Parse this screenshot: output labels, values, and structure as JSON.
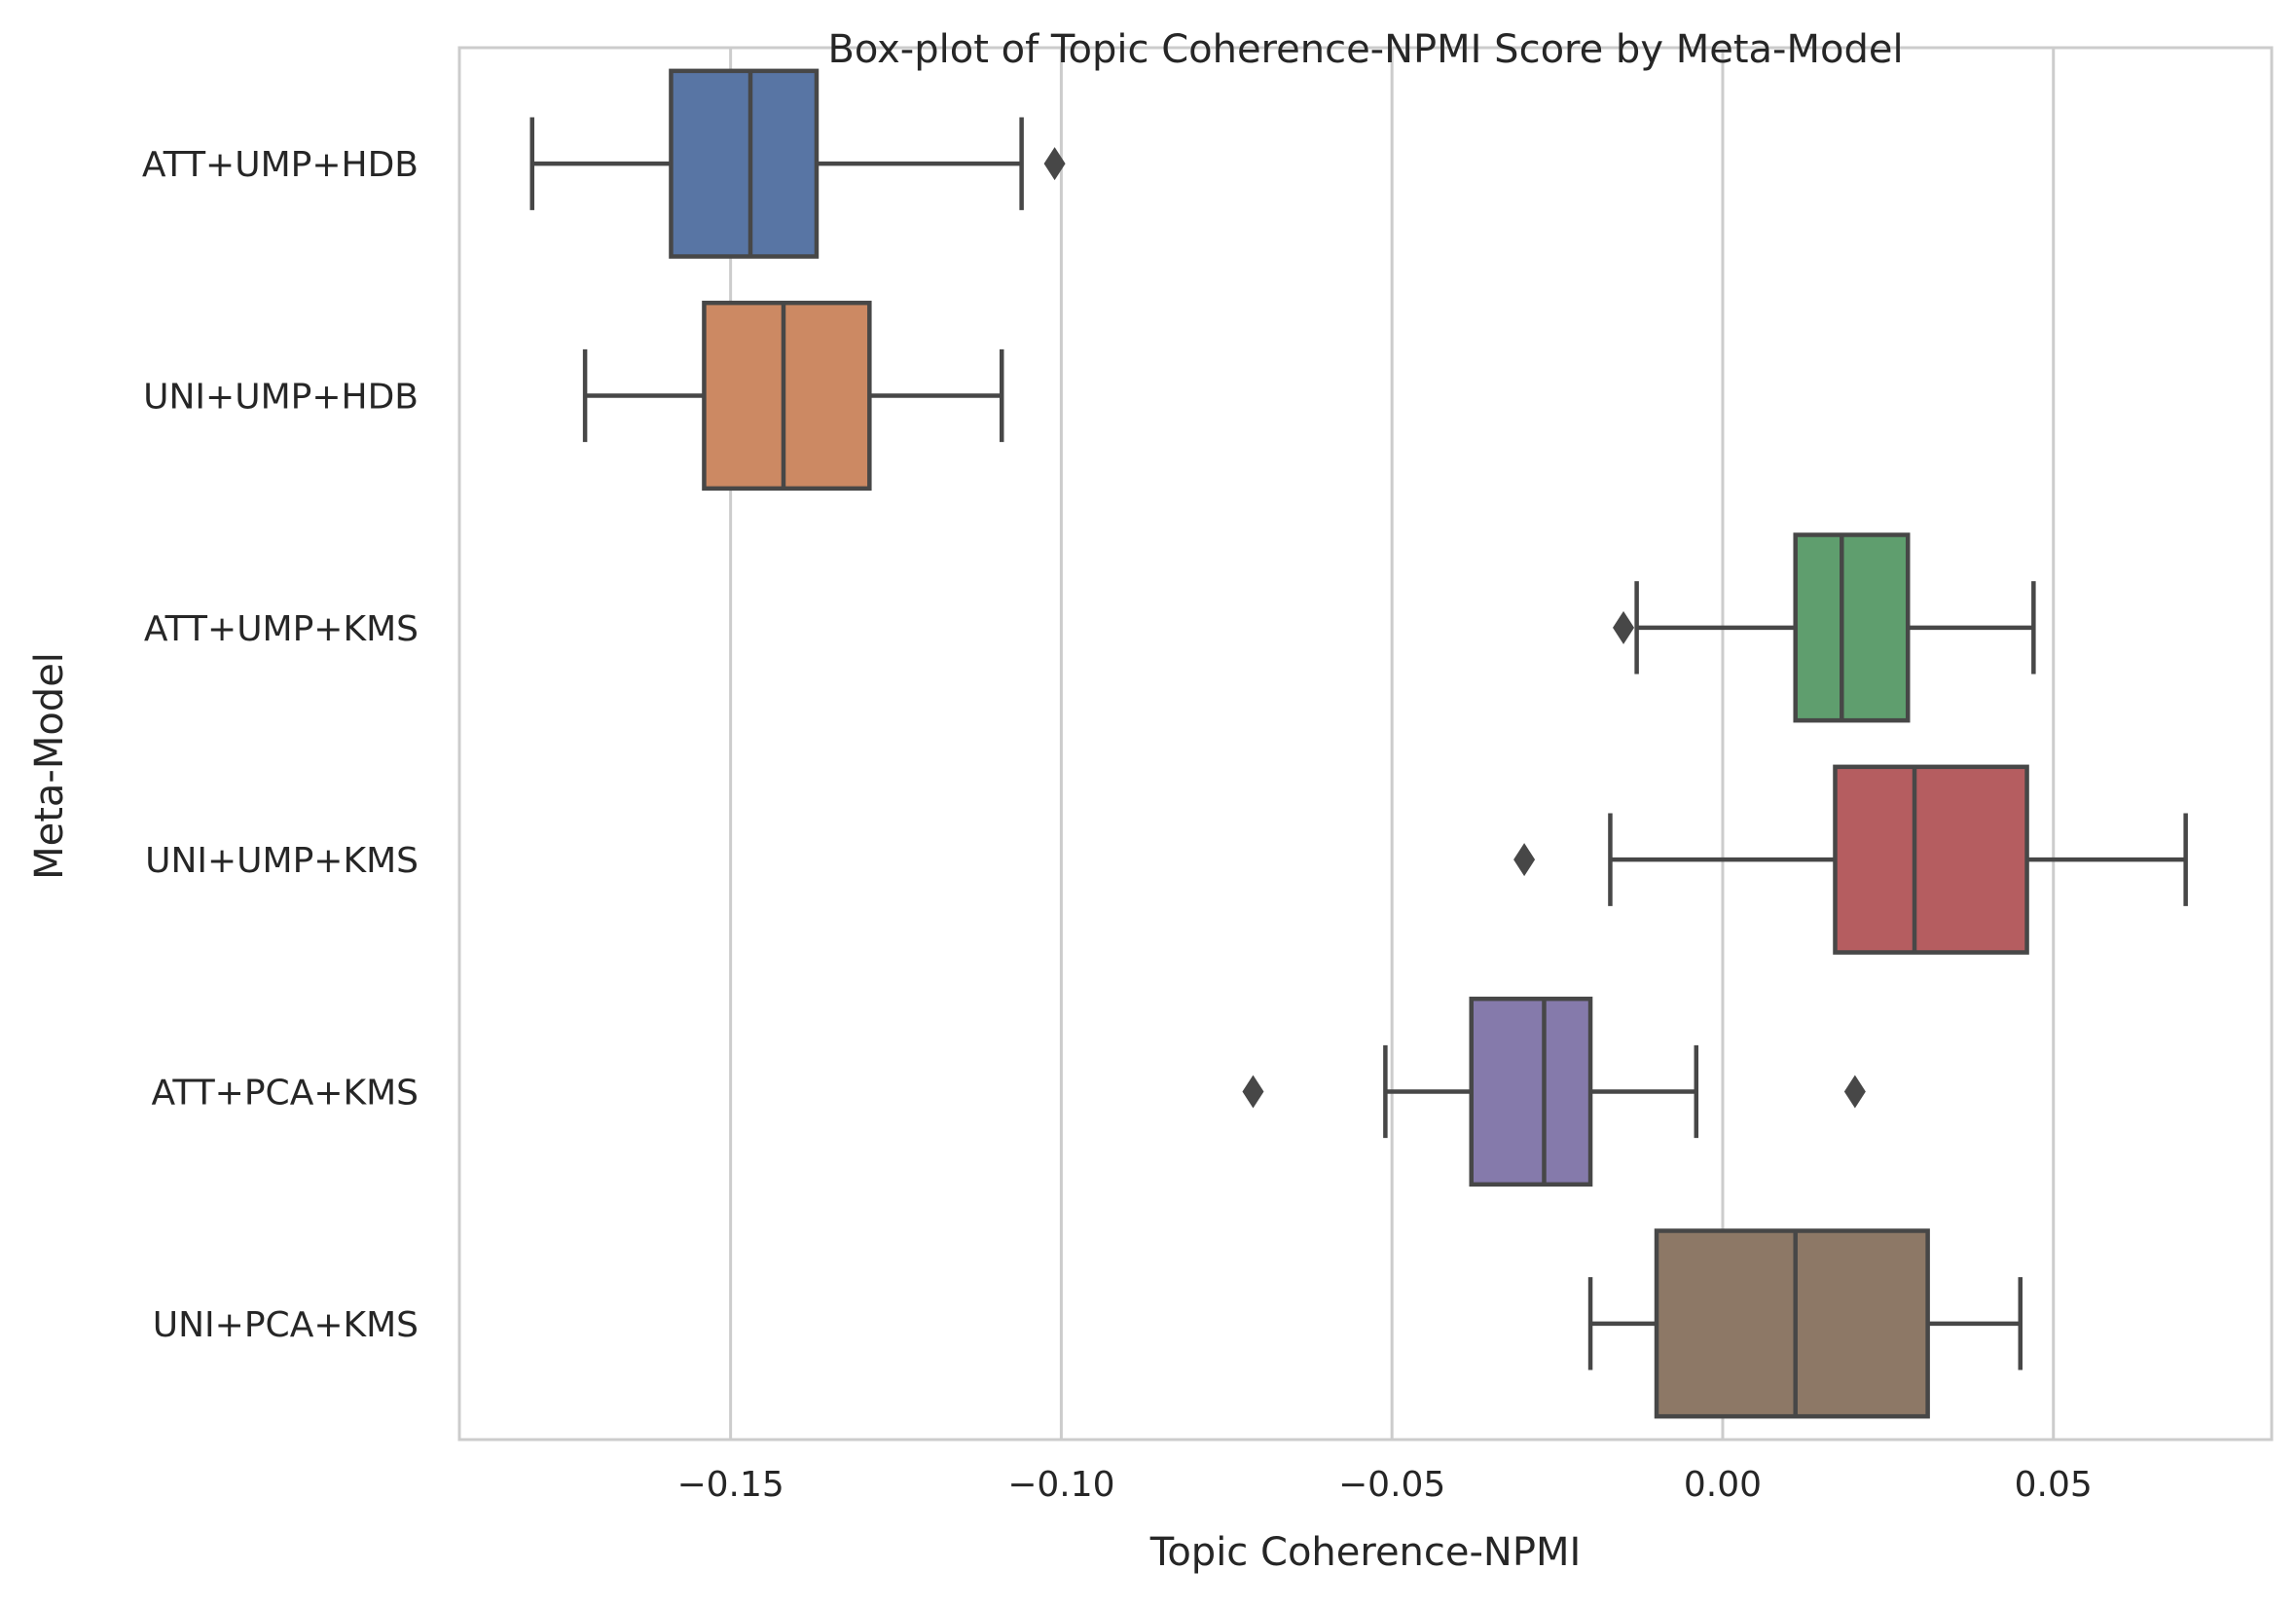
{
  "chart_data": {
    "type": "boxplot",
    "orientation": "horizontal",
    "title": "Box-plot of Topic Coherence-NPMI Score by Meta-Model",
    "xlabel": "Topic Coherence-NPMI",
    "ylabel": "Meta-Model",
    "xlim": [
      -0.191,
      0.083
    ],
    "xticks": [
      -0.15,
      -0.1,
      -0.05,
      0.0,
      0.05
    ],
    "xtick_labels": [
      "−0.15",
      "−0.10",
      "−0.05",
      "0.00",
      "0.05"
    ],
    "grid": "vertical",
    "categories": [
      "ATT+UMP+HDB",
      "UNI+UMP+HDB",
      "ATT+UMP+KMS",
      "UNI+UMP+KMS",
      "ATT+PCA+KMS",
      "UNI+PCA+KMS"
    ],
    "series": [
      {
        "category": "ATT+UMP+HDB",
        "color": "#5875a4",
        "whisker_low": -0.18,
        "q1": -0.159,
        "median": -0.147,
        "q3": -0.137,
        "whisker_high": -0.106,
        "outliers": [
          -0.101
        ]
      },
      {
        "category": "UNI+UMP+HDB",
        "color": "#cc8963",
        "whisker_low": -0.172,
        "q1": -0.154,
        "median": -0.142,
        "q3": -0.129,
        "whisker_high": -0.109,
        "outliers": []
      },
      {
        "category": "ATT+UMP+KMS",
        "color": "#5f9e6e",
        "whisker_low": -0.013,
        "q1": 0.011,
        "median": 0.018,
        "q3": 0.028,
        "whisker_high": 0.047,
        "outliers": [
          -0.015
        ]
      },
      {
        "category": "UNI+UMP+KMS",
        "color": "#b55d60",
        "whisker_low": -0.017,
        "q1": 0.017,
        "median": 0.029,
        "q3": 0.046,
        "whisker_high": 0.07,
        "outliers": [
          -0.03
        ]
      },
      {
        "category": "ATT+PCA+KMS",
        "color": "#857aab",
        "whisker_low": -0.051,
        "q1": -0.038,
        "median": -0.027,
        "q3": -0.02,
        "whisker_high": -0.004,
        "outliers": [
          -0.071,
          0.02
        ]
      },
      {
        "category": "UNI+PCA+KMS",
        "color": "#8d7866",
        "whisker_low": -0.02,
        "q1": -0.01,
        "median": 0.011,
        "q3": 0.031,
        "whisker_high": 0.045,
        "outliers": []
      }
    ]
  }
}
